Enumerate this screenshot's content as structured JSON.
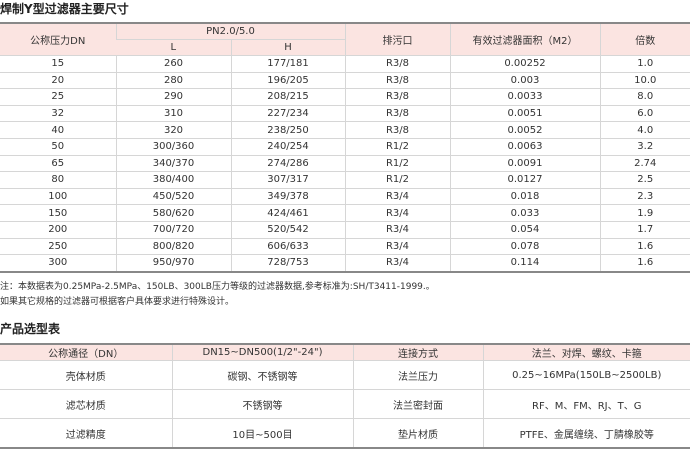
{
  "section1": {
    "title": "焊制Y型过滤器主要尺寸",
    "headers": {
      "dn": "公称压力DN",
      "pn": "PN2.0/5.0",
      "l": "L",
      "h": "H",
      "drain": "排污口",
      "area": "有效过滤器面积（M2）",
      "ratio": "倍数"
    },
    "rows": [
      [
        "15",
        "260",
        "177/181",
        "R3/8",
        "0.00252",
        "1.0"
      ],
      [
        "20",
        "280",
        "196/205",
        "R3/8",
        "0.003",
        "10.0"
      ],
      [
        "25",
        "290",
        "208/215",
        "R3/8",
        "0.0033",
        "8.0"
      ],
      [
        "32",
        "310",
        "227/234",
        "R3/8",
        "0.0051",
        "6.0"
      ],
      [
        "40",
        "320",
        "238/250",
        "R3/8",
        "0.0052",
        "4.0"
      ],
      [
        "50",
        "300/360",
        "240/254",
        "R1/2",
        "0.0063",
        "3.2"
      ],
      [
        "65",
        "340/370",
        "274/286",
        "R1/2",
        "0.0091",
        "2.74"
      ],
      [
        "80",
        "380/400",
        "307/317",
        "R1/2",
        "0.0127",
        "2.5"
      ],
      [
        "100",
        "450/520",
        "349/378",
        "R3/4",
        "0.018",
        "2.3"
      ],
      [
        "150",
        "580/620",
        "424/461",
        "R3/4",
        "0.033",
        "1.9"
      ],
      [
        "200",
        "700/720",
        "520/542",
        "R3/4",
        "0.054",
        "1.7"
      ],
      [
        "250",
        "800/820",
        "606/633",
        "R3/4",
        "0.078",
        "1.6"
      ],
      [
        "300",
        "950/970",
        "728/753",
        "R3/4",
        "0.114",
        "1.6"
      ]
    ],
    "notes": [
      "注：本数据表为0.25MPa-2.5MPa、150LB、300LB压力等级的过滤器数据,参考标准为:SH/T3411-1999.。",
      "如果其它规格的过滤器可根据客户具体要求进行特殊设计。"
    ]
  },
  "section2": {
    "title": "产品选型表",
    "rows": [
      [
        "公称通径（DN）",
        "DN15~DN500(1/2\"-24\")",
        "连接方式",
        "法兰、对焊、螺纹、卡箍"
      ],
      [
        "壳体材质",
        "碳钢、不锈钢等",
        "法兰压力",
        "0.25~16MPa(150LB~2500LB)"
      ],
      [
        "滤芯材质",
        "不锈钢等",
        "法兰密封面",
        "RF、M、FM、RJ、T、G"
      ],
      [
        "过滤精度",
        "10目~500目",
        "垫片材质",
        "PTFE、金属缠绕、丁腈橡胶等"
      ]
    ]
  },
  "colors": {
    "header_bg": "#fbe4e1",
    "border": "#d6d6d6"
  }
}
